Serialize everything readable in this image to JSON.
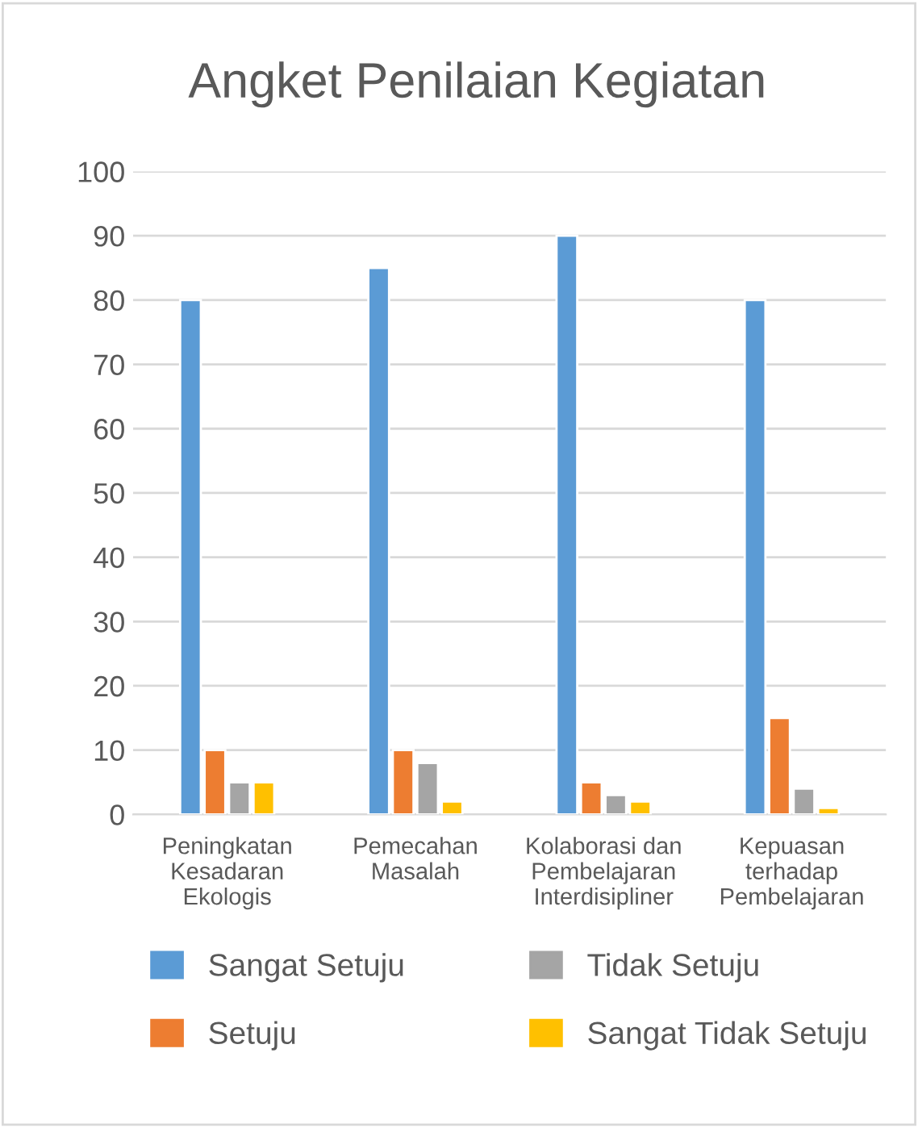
{
  "chart_data": {
    "type": "bar",
    "title": "Angket Penilaian Kegiatan",
    "categories": [
      "Peningkatan\nKesadaran\nEkologis",
      "Pemecahan\nMasalah",
      "Kolaborasi dan\nPembelajaran\nInterdisipliner",
      "Kepuasan\nterhadap\nPembelajaran"
    ],
    "series": [
      {
        "name": "Sangat Setuju",
        "color": "#5b9bd5",
        "values": [
          80,
          85,
          90,
          80
        ]
      },
      {
        "name": "Setuju",
        "color": "#ed7d31",
        "values": [
          10,
          10,
          5,
          15
        ]
      },
      {
        "name": "Tidak Setuju",
        "color": "#a5a5a5",
        "values": [
          5,
          8,
          3,
          4
        ]
      },
      {
        "name": "Sangat Tidak Setuju",
        "color": "#ffc000",
        "values": [
          5,
          2,
          2,
          1
        ]
      }
    ],
    "ylim": [
      0,
      100
    ],
    "yticks": [
      0,
      10,
      20,
      30,
      40,
      50,
      60,
      70,
      80,
      90,
      100
    ],
    "grid": "y",
    "legend": "bottom"
  }
}
